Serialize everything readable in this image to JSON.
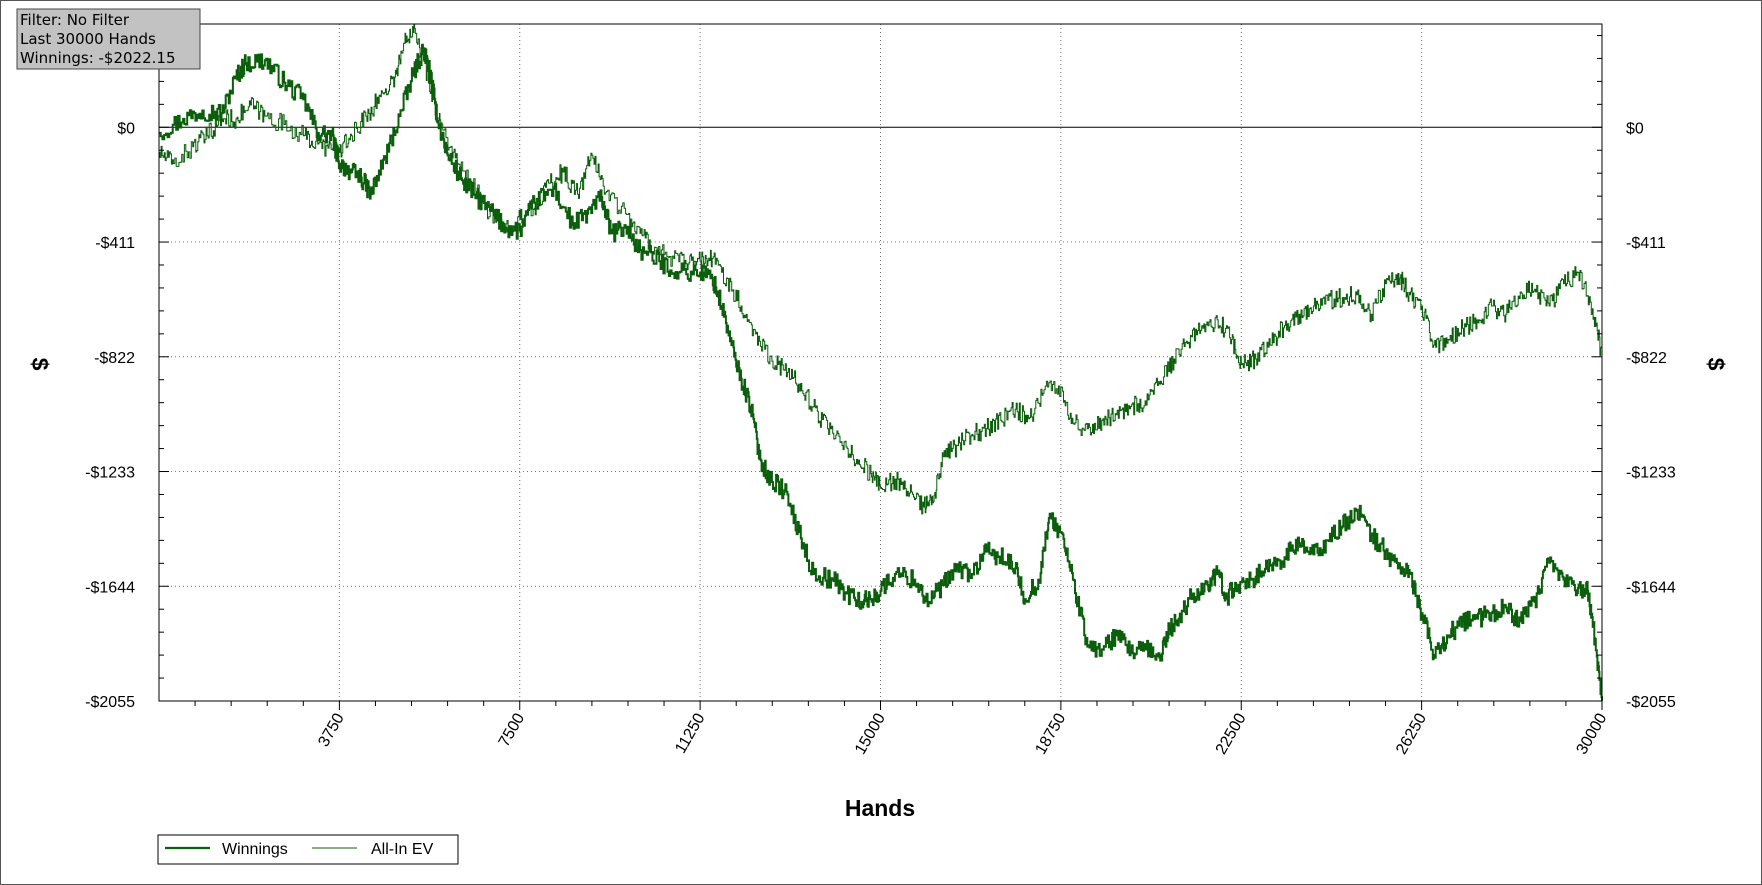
{
  "info_box": {
    "filter": "Filter: No Filter",
    "range": "Last 30000 Hands",
    "winnings": "Winnings: -$2022.15"
  },
  "chart_data": {
    "type": "line",
    "title": "",
    "xlabel": "Hands",
    "ylabel": "$",
    "xlim": [
      0,
      30000
    ],
    "ylim": [
      -2055,
      370
    ],
    "x_ticks": [
      3750,
      7500,
      11250,
      15000,
      18750,
      22500,
      26250,
      30000
    ],
    "x_tick_labels": [
      "3750",
      "7500",
      "11250",
      "15000",
      "18750",
      "22500",
      "26250",
      "30000"
    ],
    "y_ticks": [
      0,
      -411,
      -822,
      -1233,
      -1644,
      -2055
    ],
    "y_tick_labels": [
      "$0",
      "-$411",
      "-$822",
      "-$1233",
      "-$1644",
      "-$2055"
    ],
    "grid": true,
    "legend_position": "bottom-left",
    "colors": {
      "line": "#0b5e0b",
      "zero_line": "#000000",
      "grid": "#777777",
      "frame": "#000000"
    },
    "series": [
      {
        "name": "Winnings",
        "style": "thick",
        "x": [
          0,
          500,
          900,
          1300,
          1600,
          1800,
          2200,
          2600,
          3000,
          3300,
          3600,
          3750,
          4000,
          4200,
          4400,
          4700,
          5000,
          5300,
          5500,
          5600,
          5800,
          6000,
          6300,
          6600,
          6900,
          7200,
          7500,
          7800,
          8200,
          8600,
          8900,
          9200,
          9400,
          9700,
          10000,
          10400,
          10800,
          11250,
          11500,
          11700,
          11900,
          12100,
          12300,
          12500,
          12700,
          13000,
          13300,
          13600,
          14000,
          14300,
          14600,
          14800,
          15000,
          15300,
          15700,
          16000,
          16300,
          16600,
          16900,
          17200,
          17500,
          17800,
          18000,
          18300,
          18500,
          18750,
          19000,
          19300,
          19600,
          19900,
          20200,
          20500,
          20800,
          21000,
          21200,
          21500,
          21800,
          22000,
          22200,
          22500,
          22800,
          23100,
          23400,
          23700,
          24000,
          24300,
          24600,
          24900,
          25200,
          25500,
          25800,
          26000,
          26250,
          26500,
          26800,
          27100,
          27400,
          27700,
          28000,
          28300,
          28600,
          28900,
          29200,
          29500,
          29700,
          29850,
          30000
        ],
        "y": [
          -20,
          30,
          60,
          50,
          180,
          230,
          240,
          160,
          100,
          -20,
          -30,
          -130,
          -160,
          -180,
          -240,
          -110,
          40,
          200,
          280,
          220,
          20,
          -100,
          -190,
          -250,
          -300,
          -360,
          -370,
          -270,
          -220,
          -350,
          -310,
          -250,
          -380,
          -360,
          -440,
          -480,
          -520,
          -520,
          -540,
          -640,
          -780,
          -900,
          -1000,
          -1190,
          -1260,
          -1300,
          -1450,
          -1600,
          -1620,
          -1670,
          -1700,
          -1690,
          -1660,
          -1600,
          -1620,
          -1700,
          -1640,
          -1580,
          -1600,
          -1520,
          -1540,
          -1580,
          -1690,
          -1620,
          -1400,
          -1450,
          -1620,
          -1860,
          -1870,
          -1820,
          -1880,
          -1870,
          -1900,
          -1800,
          -1760,
          -1670,
          -1640,
          -1600,
          -1680,
          -1630,
          -1610,
          -1570,
          -1540,
          -1490,
          -1530,
          -1480,
          -1430,
          -1370,
          -1460,
          -1520,
          -1580,
          -1600,
          -1740,
          -1890,
          -1820,
          -1770,
          -1760,
          -1740,
          -1720,
          -1770,
          -1700,
          -1560,
          -1620,
          -1650,
          -1660,
          -1830,
          -2055
        ]
      },
      {
        "name": "All-In EV",
        "style": "thin",
        "x": [
          0,
          300,
          700,
          1000,
          1300,
          1600,
          1900,
          2200,
          2600,
          3000,
          3300,
          3600,
          3750,
          4000,
          4300,
          4600,
          4900,
          5100,
          5300,
          5500,
          5700,
          5900,
          6200,
          6600,
          7000,
          7300,
          7500,
          7800,
          8100,
          8400,
          8700,
          9000,
          9300,
          9700,
          10000,
          10300,
          10700,
          11000,
          11250,
          11500,
          11800,
          12100,
          12400,
          12700,
          13000,
          13300,
          13600,
          13900,
          14200,
          14500,
          14800,
          15000,
          15300,
          15600,
          15900,
          16100,
          16300,
          16600,
          16900,
          17200,
          17500,
          17800,
          18100,
          18400,
          18750,
          19000,
          19300,
          19600,
          19900,
          20200,
          20500,
          20800,
          21100,
          21400,
          21700,
          22000,
          22300,
          22500,
          22800,
          23100,
          23400,
          23700,
          24000,
          24300,
          24600,
          24900,
          25200,
          25500,
          25800,
          26000,
          26250,
          26500,
          26800,
          27100,
          27400,
          27700,
          28000,
          28300,
          28600,
          28900,
          29200,
          29500,
          29800,
          30000
        ],
        "y": [
          -90,
          -130,
          -70,
          -30,
          30,
          30,
          80,
          40,
          10,
          -30,
          -60,
          -80,
          -90,
          -30,
          40,
          110,
          180,
          300,
          370,
          240,
          100,
          -10,
          -130,
          -230,
          -340,
          -360,
          -330,
          -290,
          -200,
          -160,
          -240,
          -100,
          -230,
          -310,
          -380,
          -430,
          -470,
          -490,
          -480,
          -470,
          -540,
          -640,
          -740,
          -820,
          -870,
          -920,
          -1000,
          -1080,
          -1140,
          -1190,
          -1240,
          -1290,
          -1260,
          -1310,
          -1360,
          -1340,
          -1180,
          -1140,
          -1100,
          -1080,
          -1050,
          -1010,
          -1040,
          -940,
          -930,
          -1060,
          -1080,
          -1050,
          -1030,
          -1000,
          -980,
          -920,
          -830,
          -770,
          -720,
          -690,
          -760,
          -850,
          -830,
          -780,
          -710,
          -670,
          -640,
          -620,
          -610,
          -600,
          -670,
          -560,
          -540,
          -600,
          -640,
          -780,
          -760,
          -720,
          -690,
          -640,
          -670,
          -590,
          -580,
          -640,
          -560,
          -520,
          -650,
          -820
        ]
      }
    ]
  },
  "legend": {
    "items": [
      {
        "label": "Winnings",
        "style": "thick"
      },
      {
        "label": "All-In EV",
        "style": "thin"
      }
    ]
  }
}
